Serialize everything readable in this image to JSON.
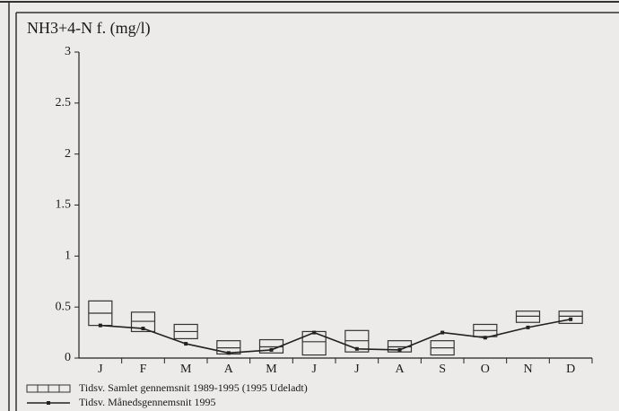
{
  "chart_data": {
    "type": "line",
    "title": "NH3+4-N f. (mg/l)",
    "categories": [
      "J",
      "F",
      "M",
      "A",
      "M",
      "J",
      "J",
      "A",
      "S",
      "O",
      "N",
      "D"
    ],
    "ylim": [
      0,
      3
    ],
    "yticks": [
      0,
      0.5,
      1,
      1.5,
      2,
      2.5,
      3
    ],
    "series": [
      {
        "name": "Tidsv. Samlet gennemsnit  1989-1995 (1995 Udeladt)",
        "color": "#333333",
        "style": "box",
        "low": [
          0.32,
          0.26,
          0.19,
          0.04,
          0.05,
          0.03,
          0.06,
          0.06,
          0.03,
          0.21,
          0.35,
          0.34
        ],
        "values": [
          0.44,
          0.36,
          0.26,
          0.1,
          0.11,
          0.16,
          0.17,
          0.11,
          0.1,
          0.27,
          0.41,
          0.41
        ],
        "high": [
          0.56,
          0.45,
          0.33,
          0.17,
          0.18,
          0.26,
          0.27,
          0.17,
          0.17,
          0.33,
          0.46,
          0.46
        ]
      },
      {
        "name": "Tidsv. Månedsgennemsnit  1995",
        "color": "#222222",
        "style": "line",
        "values": [
          0.32,
          0.29,
          0.14,
          0.05,
          0.08,
          0.25,
          0.09,
          0.08,
          0.25,
          0.2,
          0.3,
          0.38
        ]
      }
    ]
  }
}
